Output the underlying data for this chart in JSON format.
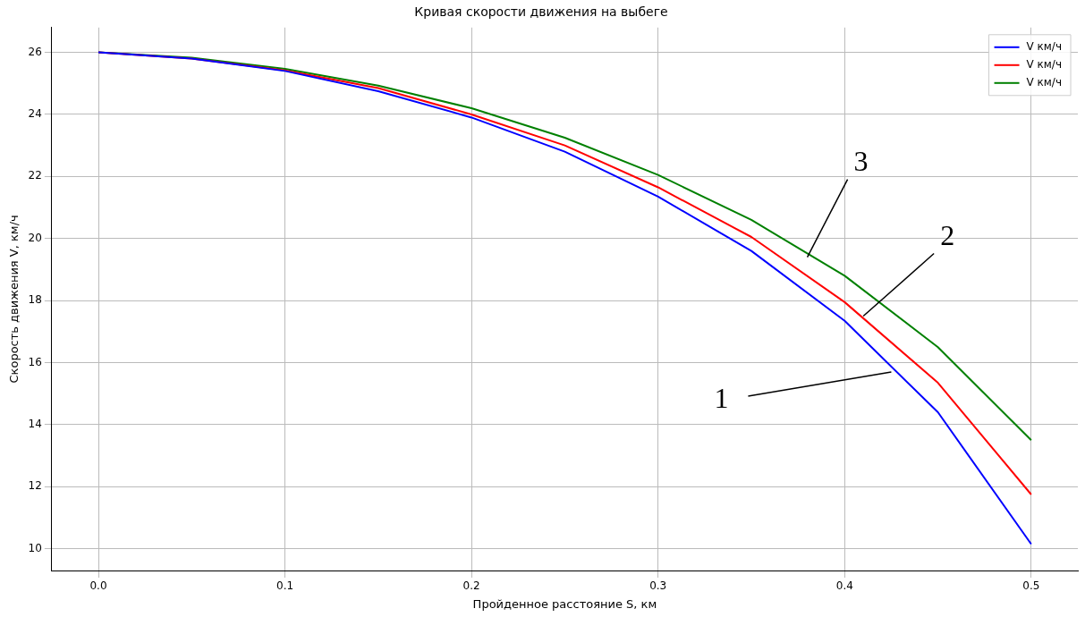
{
  "chart_data": {
    "type": "line",
    "title": "Кривая скорости движения на выбеге",
    "xlabel": "Пройденное расстояние S, км",
    "ylabel": "Скорость движения V, км/ч",
    "x": [
      0,
      0.05,
      0.1,
      0.15,
      0.2,
      0.25,
      0.3,
      0.35,
      0.4,
      0.45,
      0.5
    ],
    "series": [
      {
        "name": "V км/ч",
        "color": "#0000ff",
        "values": [
          26,
          25.8,
          25.4,
          24.75,
          23.9,
          22.8,
          21.35,
          19.6,
          17.35,
          14.4,
          10.15
        ]
      },
      {
        "name": "V км/ч",
        "color": "#ff0000",
        "values": [
          26,
          25.8,
          25.42,
          24.85,
          24.0,
          23.0,
          21.65,
          20.05,
          17.95,
          15.35,
          11.75
        ]
      },
      {
        "name": "V км/ч",
        "color": "#008000",
        "values": [
          26,
          25.83,
          25.47,
          24.93,
          24.2,
          23.25,
          22.05,
          20.6,
          18.8,
          16.5,
          13.5
        ]
      }
    ],
    "xlim": [
      -0.025,
      0.525
    ],
    "xticks": [
      {
        "value": 0,
        "label": "0.0"
      },
      {
        "value": 0.1,
        "label": "0.1"
      },
      {
        "value": 0.2,
        "label": "0.2"
      },
      {
        "value": 0.3,
        "label": "0.3"
      },
      {
        "value": 0.4,
        "label": "0.4"
      },
      {
        "value": 0.5,
        "label": "0.5"
      }
    ],
    "ylim": [
      9.3,
      26.8
    ],
    "yticks": [
      10,
      12,
      14,
      16,
      18,
      20,
      22,
      24,
      26
    ],
    "annotations": [
      {
        "text": "1",
        "x": 0.425,
        "y": 15.7
      },
      {
        "text": "2",
        "x": 0.41,
        "y": 17.5
      },
      {
        "text": "3",
        "x": 0.38,
        "y": 19.4
      }
    ],
    "grid": true,
    "legend": "top right",
    "marker": "none",
    "line_style": "solid"
  }
}
